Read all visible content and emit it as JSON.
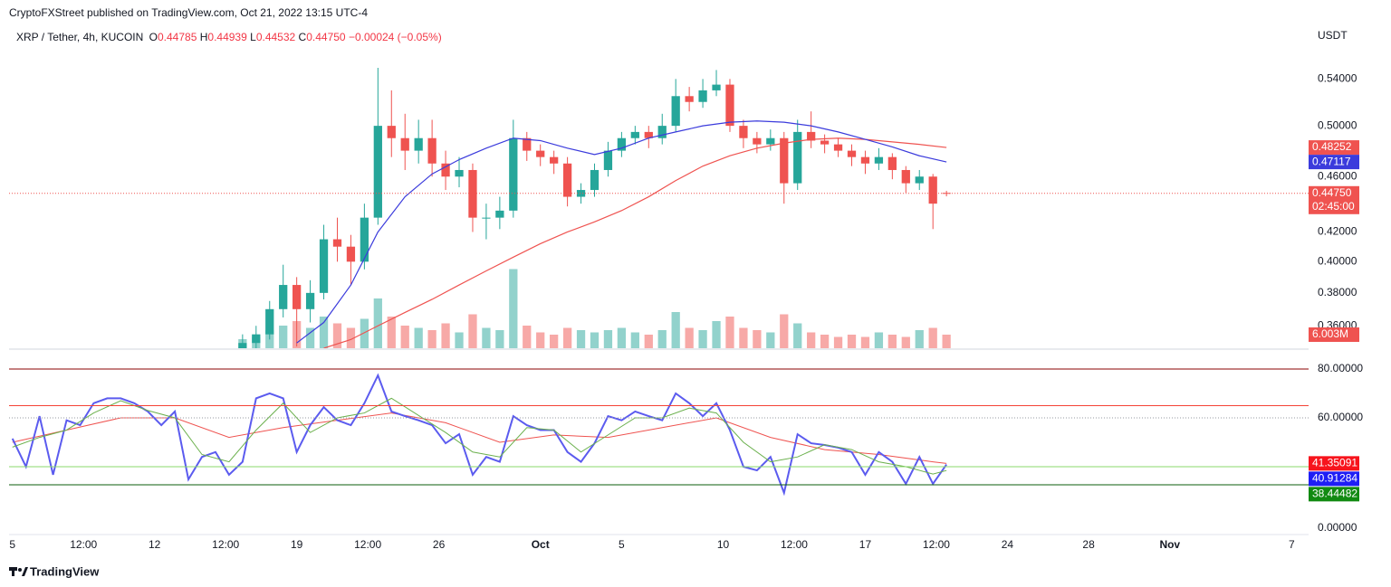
{
  "header": {
    "publisher": "CryptoFXStreet published on TradingView.com, Oct 21, 2022 13:15 UTC-4",
    "ohlc_letters": [
      "O",
      "H",
      "L",
      "C"
    ],
    "change": "−0.00024 (−0.05%)"
  },
  "footer": "TradingView",
  "chart_data": [
    {
      "type": "candlestick",
      "title": "XRP / Tether, 4h, KUCOIN",
      "y_axis_label": "USDT",
      "log_scale": true,
      "ylim": [
        0.347,
        0.588
      ],
      "yticks": [
        {
          "value": 0.54,
          "label": "0.54000"
        },
        {
          "value": 0.5,
          "label": "0.50000"
        },
        {
          "value": 0.46,
          "label": "0.46000"
        },
        {
          "value": 0.42,
          "label": "0.42000"
        },
        {
          "value": 0.4,
          "label": "0.40000"
        },
        {
          "value": 0.38,
          "label": "0.38000"
        },
        {
          "value": 0.36,
          "label": "0.36000"
        }
      ],
      "xlim": [
        -1,
        383
      ],
      "xticks": [
        {
          "value": 0,
          "label": "5"
        },
        {
          "value": 21,
          "label": "12:00"
        },
        {
          "value": 42,
          "label": "12"
        },
        {
          "value": 63,
          "label": "12:00"
        },
        {
          "value": 84,
          "label": "19"
        },
        {
          "value": 105,
          "label": "12:00"
        },
        {
          "value": 126,
          "label": "26"
        },
        {
          "value": 156,
          "label": "Oct"
        },
        {
          "value": 180,
          "label": "5"
        },
        {
          "value": 210,
          "label": "10"
        },
        {
          "value": 231,
          "label": "12:00"
        },
        {
          "value": 252,
          "label": "17"
        },
        {
          "value": 273,
          "label": "12:00"
        },
        {
          "value": 294,
          "label": "24"
        },
        {
          "value": 318,
          "label": "28"
        },
        {
          "value": 342,
          "label": "Nov"
        },
        {
          "value": 378,
          "label": "7"
        }
      ],
      "up_color": "#26a69a",
      "down_color": "#ef5350",
      "x": [
        68,
        72,
        76,
        80,
        84,
        88,
        92,
        96,
        100,
        104,
        108,
        112,
        116,
        120,
        124,
        128,
        132,
        136,
        140,
        144,
        148,
        152,
        156,
        160,
        164,
        168,
        172,
        176,
        180,
        184,
        188,
        192,
        196,
        200,
        204,
        208,
        212,
        216,
        220,
        224,
        228,
        232,
        236,
        240,
        244,
        248,
        252,
        256,
        260,
        264,
        268,
        272,
        276
      ],
      "open": [
        0.345,
        0.35,
        0.355,
        0.37,
        0.385,
        0.37,
        0.38,
        0.415,
        0.41,
        0.4,
        0.43,
        0.5,
        0.49,
        0.48,
        0.49,
        0.47,
        0.46,
        0.465,
        0.43,
        0.43,
        0.435,
        0.49,
        0.48,
        0.475,
        0.47,
        0.445,
        0.45,
        0.465,
        0.48,
        0.49,
        0.495,
        0.49,
        0.5,
        0.525,
        0.52,
        0.53,
        0.535,
        0.5,
        0.49,
        0.485,
        0.49,
        0.455,
        0.495,
        0.488,
        0.485,
        0.48,
        0.475,
        0.47,
        0.475,
        0.465,
        0.455,
        0.46,
        0.44785
      ],
      "high": [
        0.355,
        0.36,
        0.375,
        0.398,
        0.39,
        0.388,
        0.425,
        0.43,
        0.418,
        0.44,
        0.55,
        0.53,
        0.51,
        0.505,
        0.505,
        0.48,
        0.475,
        0.47,
        0.44,
        0.445,
        0.505,
        0.495,
        0.485,
        0.48,
        0.475,
        0.455,
        0.47,
        0.487,
        0.495,
        0.5,
        0.5,
        0.51,
        0.54,
        0.533,
        0.54,
        0.548,
        0.54,
        0.505,
        0.495,
        0.497,
        0.495,
        0.505,
        0.512,
        0.493,
        0.49,
        0.485,
        0.48,
        0.482,
        0.478,
        0.468,
        0.465,
        0.462,
        0.44939
      ],
      "low": [
        0.342,
        0.347,
        0.352,
        0.365,
        0.348,
        0.362,
        0.376,
        0.4,
        0.385,
        0.395,
        0.425,
        0.475,
        0.465,
        0.47,
        0.46,
        0.45,
        0.452,
        0.42,
        0.415,
        0.422,
        0.43,
        0.472,
        0.468,
        0.462,
        0.438,
        0.44,
        0.445,
        0.46,
        0.475,
        0.485,
        0.482,
        0.485,
        0.495,
        0.512,
        0.515,
        0.525,
        0.495,
        0.482,
        0.478,
        0.48,
        0.44,
        0.45,
        0.482,
        0.478,
        0.475,
        0.468,
        0.462,
        0.465,
        0.458,
        0.448,
        0.45,
        0.422,
        0.44532
      ],
      "close": [
        0.35,
        0.355,
        0.37,
        0.385,
        0.37,
        0.38,
        0.415,
        0.41,
        0.4,
        0.43,
        0.5,
        0.49,
        0.48,
        0.49,
        0.47,
        0.46,
        0.465,
        0.43,
        0.43,
        0.435,
        0.49,
        0.48,
        0.475,
        0.47,
        0.445,
        0.45,
        0.465,
        0.48,
        0.49,
        0.495,
        0.49,
        0.5,
        0.525,
        0.52,
        0.53,
        0.535,
        0.5,
        0.49,
        0.485,
        0.49,
        0.455,
        0.495,
        0.488,
        0.485,
        0.48,
        0.475,
        0.47,
        0.475,
        0.465,
        0.455,
        0.46,
        0.44,
        0.4475
      ],
      "close_labels": [
        null,
        null,
        null,
        null,
        null,
        null,
        null,
        null,
        null,
        null,
        null,
        null,
        null,
        null,
        null,
        null,
        null,
        null,
        null,
        null,
        null,
        null,
        null,
        null,
        null,
        null,
        null,
        null,
        null,
        null,
        null,
        null,
        null,
        null,
        null,
        null,
        null,
        null,
        null,
        null,
        null,
        null,
        null,
        null,
        null,
        null,
        null,
        null,
        null,
        null,
        null,
        null,
        "0.44750"
      ],
      "countdown": "02:45:00",
      "volume": {
        "color_alpha": 0.5,
        "ylim": [
          0,
          142000000
        ],
        "values": [
          4000000,
          5000000,
          8000000,
          10000000,
          12000000,
          9000000,
          14000000,
          11000000,
          9000000,
          13000000,
          22000000,
          14000000,
          10000000,
          9000000,
          8000000,
          11000000,
          7000000,
          15000000,
          9000000,
          8000000,
          35000000,
          10000000,
          7000000,
          6000000,
          9000000,
          8000000,
          7000000,
          8000000,
          9000000,
          7000000,
          6000000,
          8000000,
          16000000,
          9000000,
          8000000,
          12000000,
          14000000,
          9000000,
          8000000,
          7000000,
          15000000,
          11000000,
          7000000,
          6000000,
          5000000,
          6000000,
          5000000,
          7000000,
          6000000,
          5000000,
          8000000,
          9000000,
          6003000
        ],
        "value_labels": [
          null,
          null,
          null,
          null,
          null,
          null,
          null,
          null,
          null,
          null,
          null,
          null,
          null,
          null,
          null,
          null,
          null,
          null,
          null,
          null,
          null,
          null,
          null,
          null,
          null,
          null,
          null,
          null,
          null,
          null,
          null,
          null,
          null,
          null,
          null,
          null,
          null,
          null,
          null,
          null,
          null,
          null,
          null,
          null,
          null,
          null,
          null,
          null,
          null,
          null,
          null,
          null,
          "6.003M"
        ]
      },
      "series": [
        {
          "color": "#ef5350",
          "x": [
            92,
            100,
            108,
            116,
            124,
            132,
            140,
            148,
            156,
            164,
            172,
            180,
            188,
            196,
            204,
            212,
            220,
            228,
            236,
            244,
            252,
            260,
            268,
            276
          ],
          "values": [
            0.347,
            0.352,
            0.36,
            0.368,
            0.376,
            0.385,
            0.394,
            0.403,
            0.412,
            0.42,
            0.427,
            0.435,
            0.445,
            0.457,
            0.468,
            0.476,
            0.482,
            0.486,
            0.489,
            0.49,
            0.489,
            0.487,
            0.485,
            0.48252
          ]
        },
        {
          "color": "#3b3bdc",
          "x": [
            84,
            92,
            100,
            108,
            116,
            124,
            132,
            140,
            148,
            156,
            164,
            172,
            180,
            188,
            196,
            204,
            212,
            220,
            228,
            236,
            244,
            252,
            260,
            268,
            276
          ],
          "values": [
            0.35,
            0.362,
            0.385,
            0.42,
            0.445,
            0.462,
            0.473,
            0.482,
            0.49,
            0.488,
            0.482,
            0.477,
            0.482,
            0.49,
            0.495,
            0.5,
            0.503,
            0.504,
            0.503,
            0.5,
            0.495,
            0.489,
            0.483,
            0.476,
            0.47117
          ]
        }
      ]
    },
    {
      "type": "line",
      "ylim": [
        12.6,
        84.8
      ],
      "yticks": [
        {
          "value": 80,
          "label": "80.00000"
        },
        {
          "value": 60,
          "label": "60.00000"
        },
        {
          "value": 0,
          "label": "0.00000"
        }
      ],
      "levels": [
        {
          "value": 80,
          "color": "#8b0000",
          "dash": false
        },
        {
          "value": 65,
          "color": "#f44336",
          "dash": false
        },
        {
          "value": 60,
          "color": "#9598a1",
          "dash": true
        },
        {
          "value": 40,
          "color": "#8bd96b",
          "dash": false
        },
        {
          "value": 32.6,
          "color": "#0b5d0b",
          "dash": false
        }
      ],
      "series": [
        {
          "color": "#ef5350",
          "plate_color": "#f7141c",
          "width": 1,
          "x": [
            0,
            16,
            32,
            48,
            64,
            80,
            96,
            112,
            128,
            144,
            160,
            176,
            192,
            208,
            224,
            240,
            256,
            272,
            276
          ],
          "values": [
            50,
            55,
            60,
            60,
            52,
            56,
            59,
            62,
            58,
            50,
            53,
            52,
            56,
            60,
            52,
            47,
            45,
            42,
            41.35091
          ]
        },
        {
          "color": "#5b5bef",
          "plate_color": "#1e1ef5",
          "width": 2,
          "x": [
            0,
            4,
            8,
            12,
            16,
            20,
            24,
            28,
            32,
            36,
            40,
            44,
            48,
            52,
            56,
            60,
            64,
            68,
            72,
            76,
            80,
            84,
            88,
            92,
            96,
            100,
            104,
            108,
            112,
            116,
            120,
            124,
            128,
            132,
            136,
            140,
            144,
            148,
            152,
            156,
            160,
            164,
            168,
            172,
            176,
            180,
            184,
            188,
            192,
            196,
            200,
            204,
            208,
            212,
            216,
            220,
            224,
            228,
            232,
            236,
            240,
            244,
            248,
            252,
            256,
            260,
            264,
            268,
            272,
            276
          ],
          "values": [
            51.5,
            40,
            60.7,
            36.7,
            59,
            57,
            66,
            68,
            68,
            66,
            62.6,
            57,
            62.6,
            34.8,
            44,
            46,
            36.7,
            42,
            68,
            70,
            68,
            46,
            57,
            64.4,
            59,
            57,
            66,
            77.4,
            62.6,
            60.7,
            59,
            57,
            49.6,
            53.3,
            36.7,
            44,
            42,
            60.7,
            57,
            55,
            55,
            46,
            42,
            49.6,
            60.7,
            59,
            62.6,
            60.7,
            59,
            70,
            66,
            60.7,
            66,
            55,
            40,
            38.5,
            44,
            29.3,
            53.3,
            49.6,
            48.9,
            47.8,
            46,
            36.7,
            46,
            42,
            33,
            44,
            33,
            40.91284
          ]
        },
        {
          "color": "#6ab04c",
          "plate_color": "#118a11",
          "width": 1,
          "x": [
            0,
            8,
            16,
            24,
            32,
            40,
            48,
            56,
            64,
            72,
            80,
            88,
            96,
            104,
            112,
            120,
            128,
            136,
            144,
            152,
            160,
            168,
            176,
            184,
            192,
            200,
            208,
            216,
            224,
            232,
            240,
            248,
            256,
            264,
            272,
            276
          ],
          "values": [
            48,
            52,
            55,
            62,
            67,
            63,
            60,
            45,
            42,
            55,
            66,
            54,
            60,
            62,
            68,
            61,
            54,
            46,
            44,
            56,
            55,
            46,
            53,
            60,
            60,
            64,
            62,
            50,
            42,
            44,
            49,
            47,
            42,
            40,
            37,
            38.44482
          ]
        }
      ]
    }
  ]
}
